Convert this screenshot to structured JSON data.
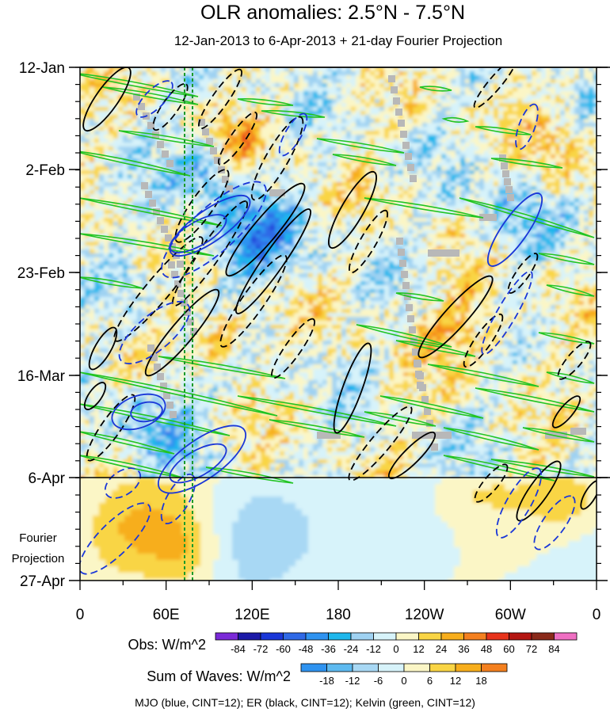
{
  "chart_data": {
    "type": "heatmap",
    "title": "OLR anomalies: 2.5°N - 7.5°N",
    "subtitle": "12-Jan-2013 to 6-Apr-2013 + 21-day Fourier Projection",
    "y_ticks": [
      "12-Jan",
      "2-Feb",
      "23-Feb",
      "16-Mar",
      "6-Apr",
      "27-Apr"
    ],
    "x_ticks": [
      "0",
      "60E",
      "120E",
      "180",
      "120W",
      "60W",
      "0"
    ],
    "projection_label": [
      "Fourier",
      "Projection"
    ],
    "obs_colorbar": {
      "label": "Obs: W/m^2",
      "levels": [
        -84,
        -72,
        -60,
        -48,
        -36,
        -24,
        -12,
        0,
        12,
        24,
        36,
        48,
        60,
        72,
        84
      ],
      "colors": [
        "#7b2ad8",
        "#1c1aa8",
        "#1a37d8",
        "#2f69e6",
        "#2f93f0",
        "#1eb7ec",
        "#9fd2f2",
        "#d7f3fa",
        "#fbf6c6",
        "#f9d545",
        "#f7ae1c",
        "#f4801f",
        "#e7331b",
        "#b41612",
        "#8a2a1a",
        "#ef6fc2"
      ]
    },
    "waves_colorbar": {
      "label": "Sum of Waves: W/m^2",
      "levels": [
        -18,
        -12,
        -6,
        0,
        6,
        12,
        18
      ],
      "colors": [
        "#2f93f0",
        "#5ebaf0",
        "#a8d8f4",
        "#d7f3fa",
        "#fbf6c6",
        "#f9d545",
        "#f7ae1c",
        "#f4801f"
      ]
    },
    "wave_overlays": [
      {
        "name": "MJO",
        "color": "#1a37d8",
        "cint": 12
      },
      {
        "name": "ER",
        "color": "#000000",
        "cint": 12
      },
      {
        "name": "Kelvin",
        "color": "#22c422",
        "cint": 12
      }
    ],
    "footer": "MJO (blue, CINT=12); ER (black, CINT=12); Kelvin (green, CINT=12)"
  }
}
